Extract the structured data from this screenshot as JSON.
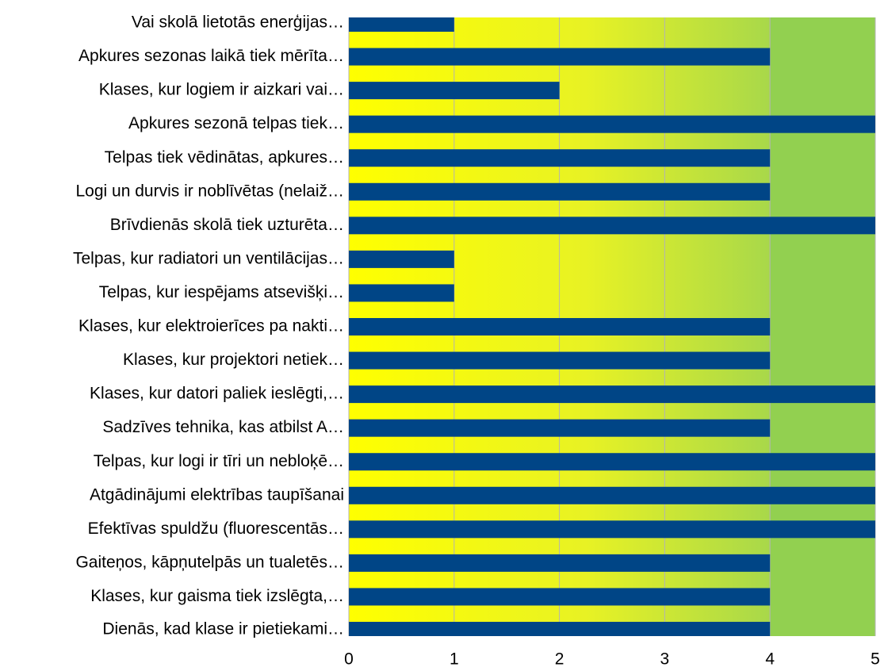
{
  "chart_data": {
    "type": "bar",
    "orientation": "horizontal",
    "categories": [
      "Vai skolā lietotās enerģijas…",
      "Apkures sezonas laikā tiek mērīta…",
      "Klases, kur logiem ir aizkari vai…",
      "Apkures sezonā telpas tiek…",
      "Telpas tiek vēdinātas, apkures…",
      "Logi un durvis ir noblīvētas (nelaiž…",
      "Brīvdienās skolā tiek uzturēta…",
      "Telpas, kur radiatori un ventilācijas…",
      "Telpas, kur iespējams atsevišķi…",
      "Klases, kur elektroierīces pa nakti…",
      "Klases, kur projektori netiek…",
      "Klases, kur datori paliek ieslēgti,…",
      "Sadzīves tehnika, kas atbilst A…",
      "Telpas, kur logi ir tīri un nebloķē…",
      "Atgādinājumi elektrības taupīšanai",
      "Efektīvas spuldžu (fluorescentās…",
      "Gaiteņos, kāpņutelpās un tualetēs…",
      "Klases, kur gaisma tiek izslēgta,…",
      "Dienās, kad klase ir pietiekami…"
    ],
    "values": [
      1,
      4,
      2,
      5,
      4,
      4,
      5,
      1,
      1,
      4,
      4,
      5,
      4,
      5,
      5,
      5,
      4,
      4,
      4
    ],
    "color": "#004586",
    "xlim": [
      0,
      5
    ],
    "xticks": [
      0,
      1,
      2,
      3,
      4,
      5
    ],
    "grid": true
  }
}
